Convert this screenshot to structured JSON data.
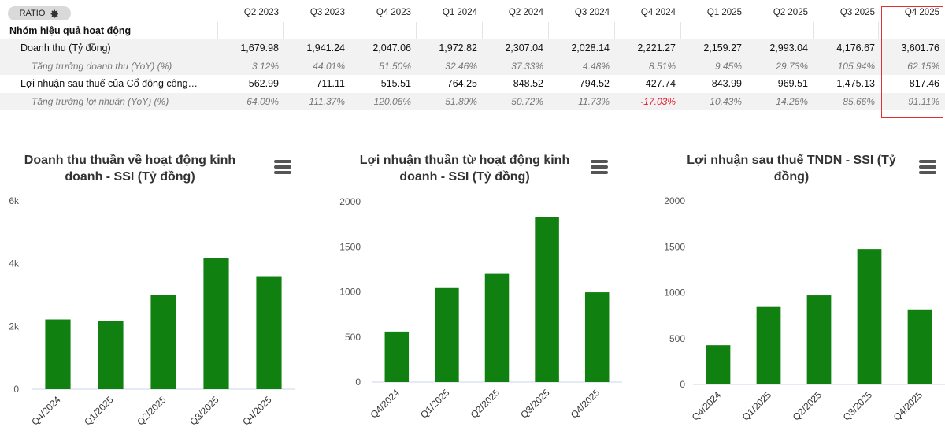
{
  "table": {
    "ratio_label": "RATIO",
    "columns": [
      "Q2 2023",
      "Q3 2023",
      "Q4 2023",
      "Q1 2024",
      "Q2 2024",
      "Q3 2024",
      "Q4 2024",
      "Q1 2025",
      "Q2 2025",
      "Q3 2025",
      "Q4 2025"
    ],
    "highlighted_column": "Q4 2025",
    "section_title": "Nhóm hiệu quả hoạt động",
    "rows": [
      {
        "label": "Doanh thu (Tỷ đồng)",
        "kind": "value",
        "values": [
          "1,679.98",
          "1,941.24",
          "2,047.06",
          "1,972.82",
          "2,307.04",
          "2,028.14",
          "2,221.27",
          "2,159.27",
          "2,993.04",
          "4,176.67",
          "3,601.76"
        ]
      },
      {
        "label": "Tăng trưởng doanh thu (YoY) (%)",
        "kind": "growth",
        "values": [
          "3.12%",
          "44.01%",
          "51.50%",
          "32.46%",
          "37.33%",
          "4.48%",
          "8.51%",
          "9.45%",
          "29.73%",
          "105.94%",
          "62.15%"
        ]
      },
      {
        "label": "Lợi nhuận sau thuế của Cổ đông công…",
        "kind": "value",
        "values": [
          "562.99",
          "711.11",
          "515.51",
          "764.25",
          "848.52",
          "794.52",
          "427.74",
          "843.99",
          "969.51",
          "1,475.13",
          "817.46"
        ]
      },
      {
        "label": "Tăng trưởng lợi nhuận (YoY) (%)",
        "kind": "growth",
        "values": [
          "64.09%",
          "111.37%",
          "120.06%",
          "51.89%",
          "50.72%",
          "11.73%",
          "-17.03%",
          "10.43%",
          "14.26%",
          "85.66%",
          "91.11%"
        ]
      }
    ]
  },
  "colors": {
    "bar": "#108010",
    "negative": "#e8192c",
    "highlight_border": "#e03030"
  },
  "charts": {
    "revenue": {
      "title_line1": "Doanh thu thuần về hoạt động kinh",
      "title_line2": "doanh - SSI (Tỷ đồng)",
      "menu_icon": "hamburger-menu-icon"
    },
    "operating_profit": {
      "title_line1": "Lợi nhuận thuần từ hoạt động kinh",
      "title_line2": "doanh - SSI (Tỷ đồng)",
      "menu_icon": "hamburger-menu-icon"
    },
    "net_profit": {
      "title_line1": "Lợi nhuận sau thuế TNDN - SSI (Tỷ",
      "title_line2": "đồng)",
      "menu_icon": "hamburger-menu-icon"
    }
  },
  "chart_data": [
    {
      "type": "bar",
      "title": "Doanh thu thuần về hoạt động kinh doanh - SSI (Tỷ đồng)",
      "categories": [
        "Q4/2024",
        "Q1/2025",
        "Q2/2025",
        "Q3/2025",
        "Q4/2025"
      ],
      "values": [
        2221.27,
        2159.27,
        2993.04,
        4176.67,
        3601.76
      ],
      "ylim": [
        0,
        6000
      ],
      "yticks": [
        0,
        2000,
        4000,
        6000
      ],
      "ytick_labels": [
        "0",
        "2k",
        "4k",
        "6k"
      ]
    },
    {
      "type": "bar",
      "title": "Lợi nhuận thuần từ hoạt động kinh doanh - SSI (Tỷ đồng)",
      "categories": [
        "Q4/2024",
        "Q1/2025",
        "Q2/2025",
        "Q3/2025",
        "Q4/2025"
      ],
      "values": [
        560,
        1050,
        1200,
        1830,
        995
      ],
      "ylim": [
        0,
        2000
      ],
      "yticks": [
        0,
        500,
        1000,
        1500,
        2000
      ],
      "ytick_labels": [
        "0",
        "500",
        "1000",
        "1500",
        "2000"
      ]
    },
    {
      "type": "bar",
      "title": "Lợi nhuận sau thuế TNDN - SSI (Tỷ đồng)",
      "categories": [
        "Q4/2024",
        "Q1/2025",
        "Q2/2025",
        "Q3/2025",
        "Q4/2025"
      ],
      "values": [
        427.74,
        843.99,
        969.51,
        1475.13,
        817.46
      ],
      "ylim": [
        0,
        2000
      ],
      "yticks": [
        0,
        500,
        1000,
        1500,
        2000
      ],
      "ytick_labels": [
        "0",
        "500",
        "1000",
        "1500",
        "2000"
      ]
    }
  ]
}
